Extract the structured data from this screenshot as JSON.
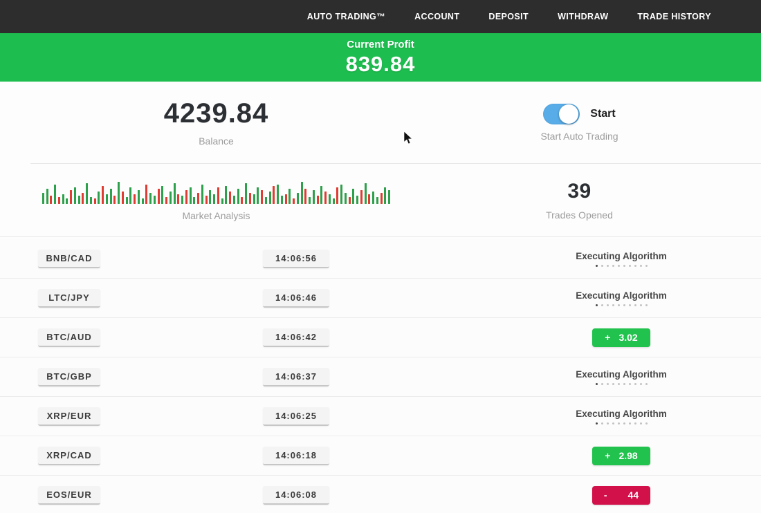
{
  "nav": {
    "items": [
      {
        "label": "AUTO TRADING™",
        "id": "auto-trading"
      },
      {
        "label": "ACCOUNT",
        "id": "account"
      },
      {
        "label": "DEPOSIT",
        "id": "deposit"
      },
      {
        "label": "WITHDRAW",
        "id": "withdraw"
      },
      {
        "label": "TRADE HISTORY",
        "id": "trade-history"
      }
    ]
  },
  "banner": {
    "label": "Current Profit",
    "value": "839.84",
    "bg_color": "#1dbe4f"
  },
  "stats": {
    "balance": {
      "value": "4239.84",
      "label": "Balance"
    },
    "auto_trading": {
      "toggle_label": "Start",
      "label": "Start Auto Trading",
      "toggle_on": true,
      "toggle_color": "#58ace8"
    },
    "market_analysis": {
      "label": "Market Analysis"
    },
    "trades_opened": {
      "value": "39",
      "label": "Trades Opened"
    }
  },
  "chart_data": {
    "type": "bar",
    "title": "Market Analysis",
    "note": "mini candlestick-style volume bars; g=green up, r=red down, number=height px (8-32)",
    "bars": [
      "g16",
      "g22",
      "r12",
      "g28",
      "r10",
      "g14",
      "g8",
      "r20",
      "g24",
      "g12",
      "r16",
      "g30",
      "g10",
      "r8",
      "g18",
      "r26",
      "g14",
      "g22",
      "r12",
      "g32",
      "r18",
      "g10",
      "g24",
      "r14",
      "g20",
      "g8",
      "r28",
      "g16",
      "g12",
      "r22",
      "g26",
      "r10",
      "g18",
      "g30",
      "r14",
      "g12",
      "r20",
      "g24",
      "g10",
      "r16",
      "g28",
      "r12",
      "g20",
      "g14",
      "r24",
      "g8",
      "g26",
      "r18",
      "g12",
      "g22",
      "r10",
      "g30",
      "r16",
      "g14",
      "g24",
      "r20",
      "g10",
      "g18",
      "r26",
      "g28",
      "g12",
      "r14",
      "g22",
      "r8",
      "g16",
      "g32",
      "r22",
      "g10",
      "g20",
      "r12",
      "g26",
      "r18",
      "g14",
      "g8",
      "r24",
      "g28",
      "g16",
      "r10",
      "g22",
      "g12",
      "r20",
      "g30",
      "r14",
      "g18",
      "g10",
      "r16",
      "g24",
      "g20"
    ],
    "colors": {
      "up": "#2ca04a",
      "down": "#e03c31"
    }
  },
  "trades": {
    "executing_label": "Executing Algorithm",
    "rows": [
      {
        "pair": "BNB/CAD",
        "time": "14:06:56",
        "status": "executing"
      },
      {
        "pair": "LTC/JPY",
        "time": "14:06:46",
        "status": "executing"
      },
      {
        "pair": "BTC/AUD",
        "time": "14:06:42",
        "status": "profit",
        "sign": "+",
        "value": "3.02"
      },
      {
        "pair": "BTC/GBP",
        "time": "14:06:37",
        "status": "executing"
      },
      {
        "pair": "XRP/EUR",
        "time": "14:06:25",
        "status": "executing"
      },
      {
        "pair": "XRP/CAD",
        "time": "14:06:18",
        "status": "profit",
        "sign": "+",
        "value": "2.98"
      },
      {
        "pair": "EOS/EUR",
        "time": "14:06:08",
        "status": "loss",
        "sign": "-",
        "value": "44"
      }
    ]
  },
  "colors": {
    "nav_bg": "#2d2d2d",
    "banner_green": "#1dbe4f",
    "badge_green": "#21c24e",
    "badge_red": "#d2104a",
    "toggle_blue": "#58ace8"
  }
}
